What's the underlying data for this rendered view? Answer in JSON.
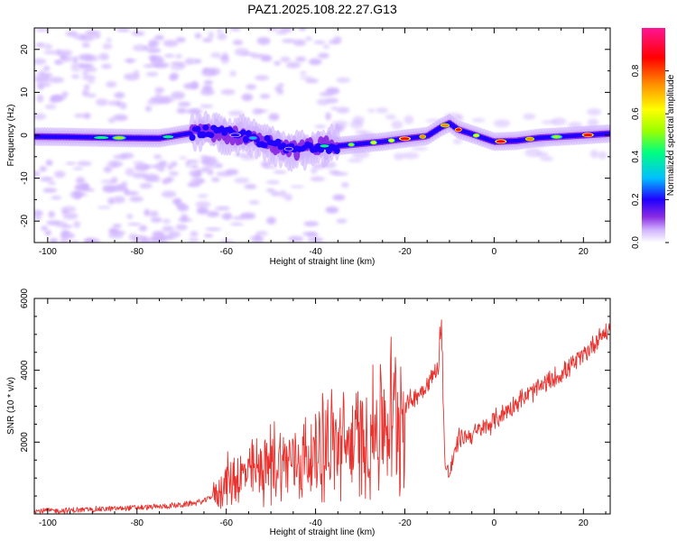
{
  "title": "PAZ1.2025.108.22.27.G13",
  "colors": {
    "snr_line": "#e8322e",
    "colormap": [
      "#ffffff",
      "#cfb2ff",
      "#8a2be2",
      "#2000ff",
      "#00bfff",
      "#00ff7f",
      "#9aff00",
      "#ffff00",
      "#ff8c00",
      "#ff0000",
      "#ff1493"
    ]
  },
  "chart_data": [
    {
      "type": "heatmap",
      "xlabel": "Height of straight line (km)",
      "ylabel": "Frequency (Hz)",
      "xlim": [
        -103,
        26
      ],
      "ylim": [
        -25,
        25
      ],
      "xticks": [
        -100,
        -80,
        -60,
        -40,
        -20,
        0,
        20
      ],
      "yticks": [
        -20,
        -10,
        0,
        10,
        20
      ],
      "colorbar": {
        "label": "Normalized spectral amplitude",
        "range": [
          0,
          1
        ],
        "ticks": [
          "0.0",
          "0.2",
          "0.4",
          "0.6",
          "0.8"
        ]
      },
      "ridge": {
        "x": [
          -103,
          -95,
          -85,
          -75,
          -65,
          -60,
          -55,
          -50,
          -45,
          -40,
          -35,
          -30,
          -25,
          -20,
          -15,
          -12,
          -10,
          -8,
          -5,
          0,
          5,
          10,
          15,
          20,
          26
        ],
        "y": [
          -0.3,
          -0.4,
          -0.6,
          -0.7,
          1.0,
          0.3,
          -0.3,
          -2.0,
          -3.5,
          -2.5,
          -2.5,
          -2.0,
          -1.5,
          -0.8,
          -0.2,
          1.8,
          2.8,
          1.3,
          0.3,
          -1.5,
          -1.3,
          -0.6,
          -0.3,
          0.0,
          0.4
        ]
      }
    },
    {
      "type": "line",
      "xlabel": "Height of straight line (km)",
      "ylabel": "SNR (10 * v/v)",
      "xlim": [
        -103,
        26
      ],
      "ylim": [
        0,
        6000
      ],
      "xticks": [
        -100,
        -80,
        -60,
        -40,
        -20,
        0,
        20
      ],
      "yticks": [
        2000,
        4000,
        6000
      ],
      "series": [
        {
          "x": [
            -103,
            -95,
            -85,
            -75,
            -70,
            -65,
            -62,
            -60,
            -58,
            -55,
            -50,
            -45,
            -40,
            -39,
            -35,
            -30,
            -25,
            -20,
            -15,
            -12.5,
            -11.8,
            -11,
            -10,
            -8,
            -5,
            -2,
            0,
            5,
            10,
            15,
            20,
            24,
            26
          ],
          "y": [
            80,
            100,
            150,
            200,
            250,
            350,
            600,
            900,
            1000,
            1100,
            1400,
            1500,
            1600,
            2000,
            1900,
            2000,
            2500,
            3000,
            3600,
            4100,
            5000,
            1300,
            1100,
            2100,
            2200,
            2400,
            2600,
            3100,
            3500,
            3900,
            4400,
            5000,
            5100
          ]
        }
      ]
    }
  ]
}
